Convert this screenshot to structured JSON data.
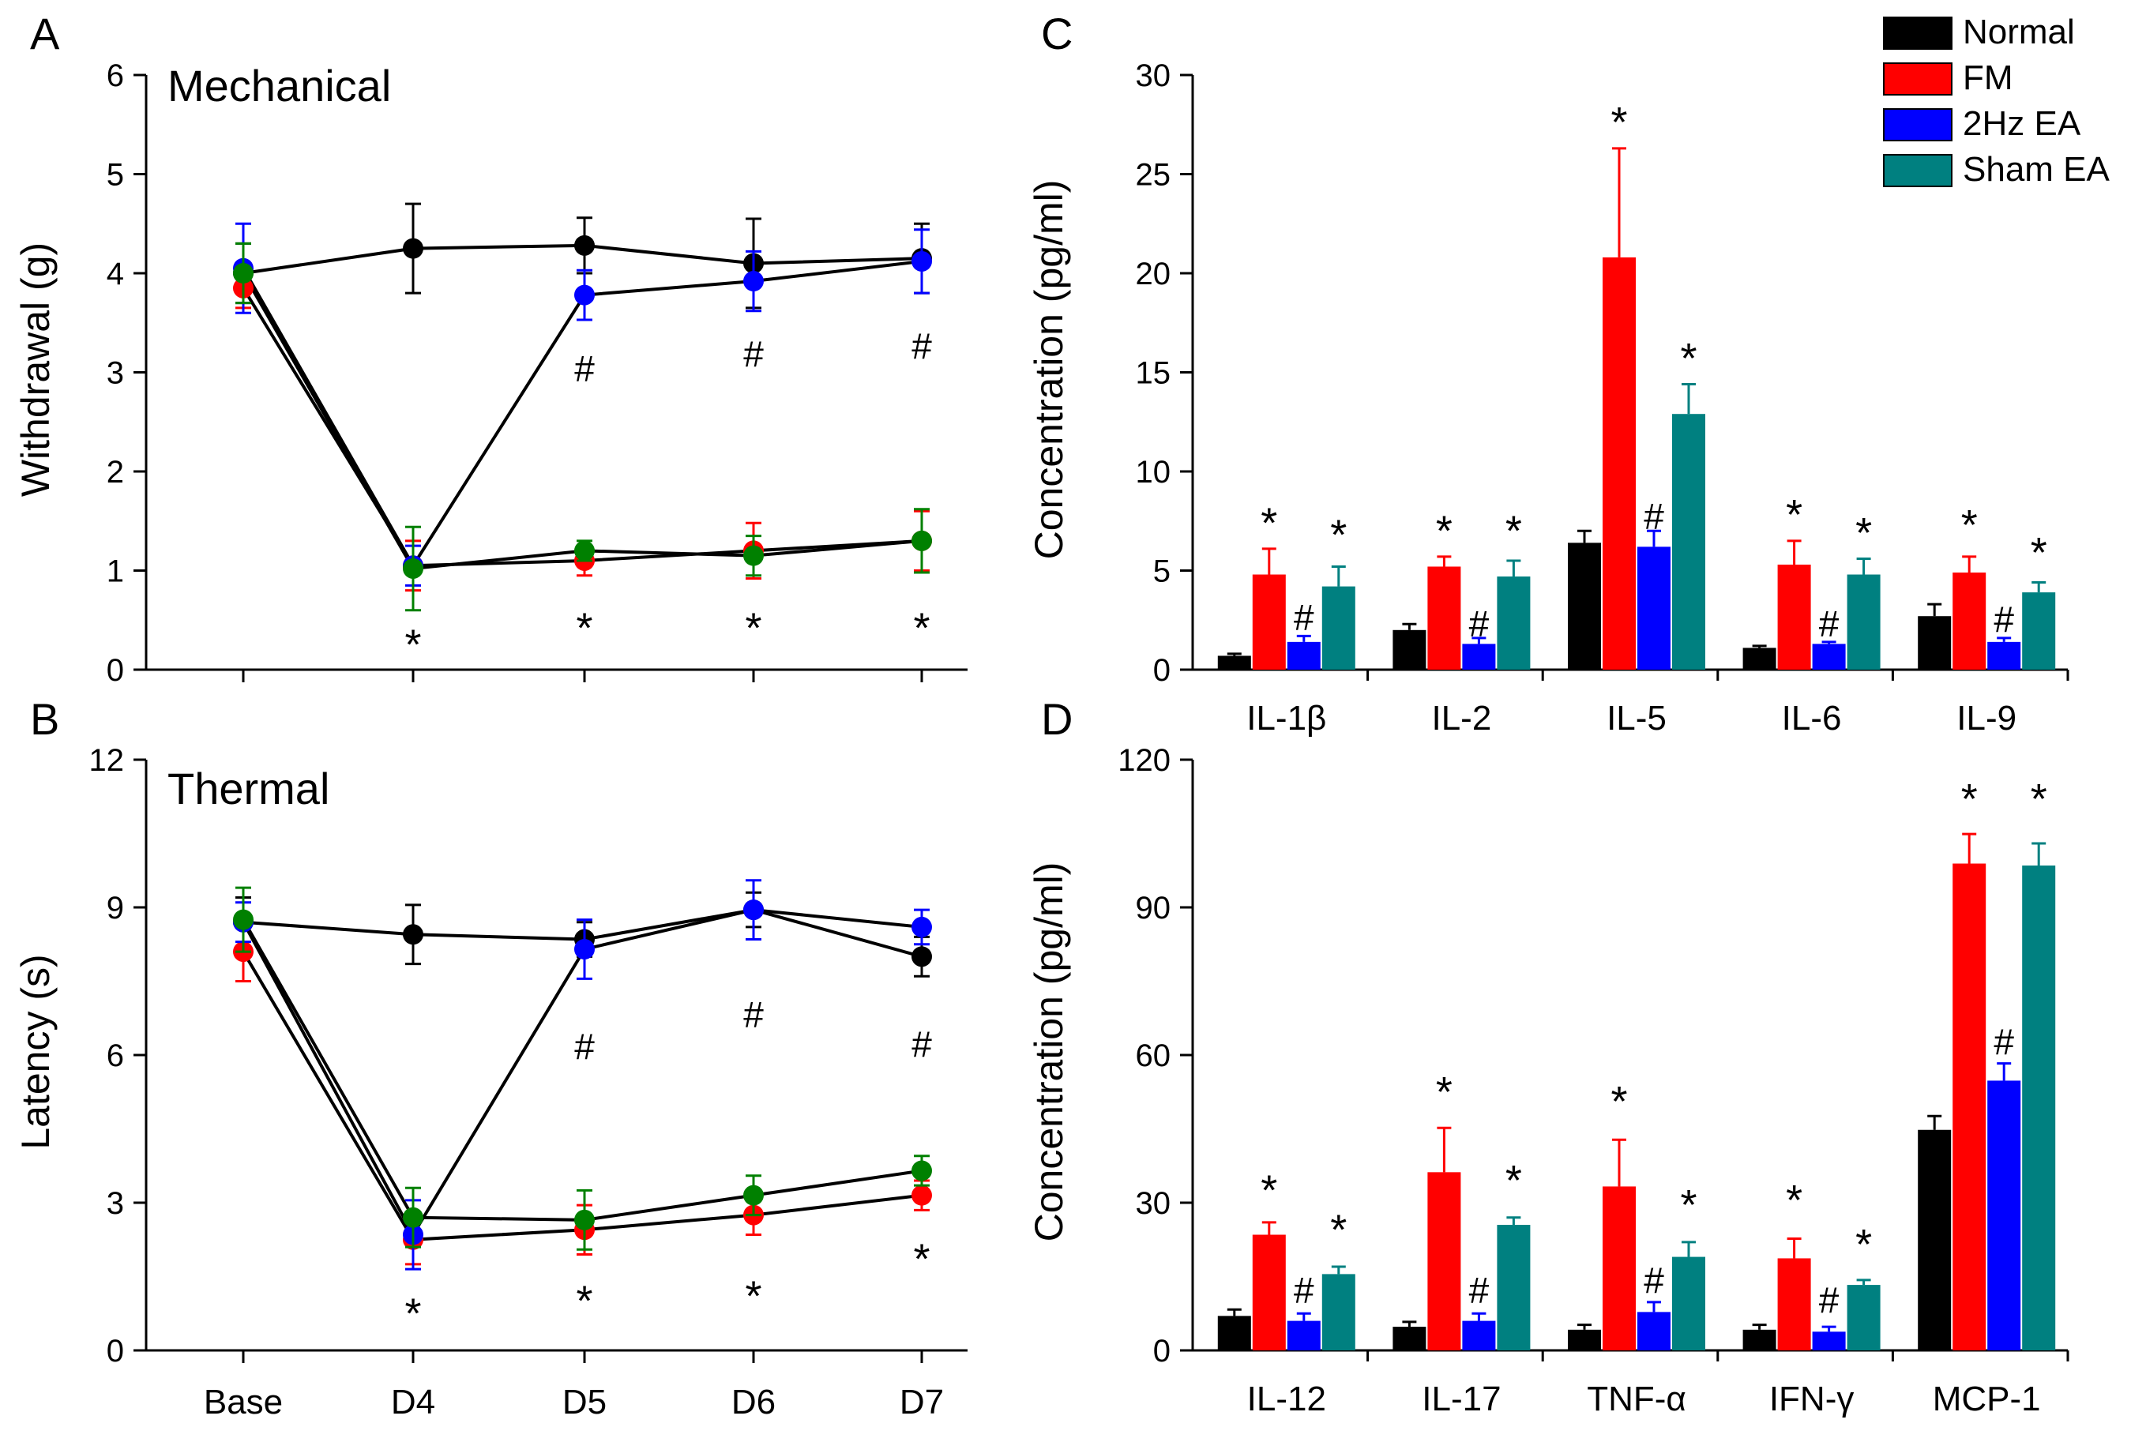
{
  "colors": {
    "Normal": "#000000",
    "FM": "#ff0000",
    "2Hz EA": "#0000ff",
    "Sham EA": "#008080",
    "line_marker_sham": "#008000"
  },
  "legend": {
    "entries": [
      "Normal",
      "FM",
      "2Hz EA",
      "Sham EA"
    ]
  },
  "chart_data": [
    {
      "id": "A",
      "type": "line",
      "panel_letter": "A",
      "title": "Mechanical",
      "xlabel": "",
      "ylabel": "Withdrawal (g)",
      "categories": [
        "Base",
        "D4",
        "D5",
        "D6",
        "D7"
      ],
      "show_x_tick_labels": false,
      "ylim": [
        0,
        6
      ],
      "yticks": [
        0,
        1,
        2,
        3,
        4,
        5,
        6
      ],
      "series": [
        {
          "name": "Normal",
          "values": [
            4.0,
            4.25,
            4.28,
            4.1,
            4.15
          ],
          "errors": [
            0.3,
            0.45,
            0.28,
            0.45,
            0.35
          ]
        },
        {
          "name": "FM",
          "values": [
            3.85,
            1.05,
            1.1,
            1.2,
            1.3
          ],
          "errors": [
            0.2,
            0.25,
            0.15,
            0.28,
            0.3
          ]
        },
        {
          "name": "2Hz EA",
          "values": [
            4.05,
            1.05,
            3.78,
            3.92,
            4.12
          ],
          "errors": [
            0.45,
            0.2,
            0.25,
            0.3,
            0.32
          ]
        },
        {
          "name": "Sham EA",
          "values": [
            4.0,
            1.02,
            1.2,
            1.15,
            1.3
          ],
          "errors": [
            0.3,
            0.42,
            0.1,
            0.2,
            0.32
          ]
        }
      ],
      "annotations": [
        {
          "category": "D4",
          "text": "*",
          "y": 0.25
        },
        {
          "category": "D5",
          "text": "*",
          "y": 0.42
        },
        {
          "category": "D6",
          "text": "*",
          "y": 0.42
        },
        {
          "category": "D7",
          "text": "*",
          "y": 0.42
        },
        {
          "category": "D5",
          "text": "#",
          "y": 3.05
        },
        {
          "category": "D6",
          "text": "#",
          "y": 3.2
        },
        {
          "category": "D7",
          "text": "#",
          "y": 3.28
        }
      ]
    },
    {
      "id": "B",
      "type": "line",
      "panel_letter": "B",
      "title": "Thermal",
      "xlabel": "",
      "ylabel": "Latency (s)",
      "categories": [
        "Base",
        "D4",
        "D5",
        "D6",
        "D7"
      ],
      "show_x_tick_labels": true,
      "ylim": [
        0,
        12
      ],
      "yticks": [
        0,
        3,
        6,
        9,
        12
      ],
      "series": [
        {
          "name": "Normal",
          "values": [
            8.7,
            8.45,
            8.35,
            8.95,
            8.0
          ],
          "errors": [
            0.5,
            0.6,
            0.35,
            0.35,
            0.4
          ]
        },
        {
          "name": "FM",
          "values": [
            8.1,
            2.25,
            2.45,
            2.75,
            3.15
          ],
          "errors": [
            0.6,
            0.5,
            0.5,
            0.4,
            0.3
          ]
        },
        {
          "name": "2Hz EA",
          "values": [
            8.7,
            2.35,
            8.15,
            8.95,
            8.6
          ],
          "errors": [
            0.4,
            0.7,
            0.6,
            0.6,
            0.35
          ]
        },
        {
          "name": "Sham EA",
          "values": [
            8.75,
            2.7,
            2.65,
            3.15,
            3.65
          ],
          "errors": [
            0.65,
            0.6,
            0.6,
            0.4,
            0.3
          ]
        }
      ],
      "annotations": [
        {
          "category": "D4",
          "text": "*",
          "y": 0.75
        },
        {
          "category": "D5",
          "text": "*",
          "y": 1.0
        },
        {
          "category": "D6",
          "text": "*",
          "y": 1.1
        },
        {
          "category": "D7",
          "text": "*",
          "y": 1.85
        },
        {
          "category": "D5",
          "text": "#",
          "y": 6.2
        },
        {
          "category": "D6",
          "text": "#",
          "y": 6.85
        },
        {
          "category": "D7",
          "text": "#",
          "y": 6.25
        }
      ]
    },
    {
      "id": "C",
      "type": "bar",
      "panel_letter": "C",
      "title": "",
      "xlabel": "",
      "ylabel": "Concentration (pg/ml)",
      "categories": [
        "IL-1β",
        "IL-2",
        "IL-5",
        "IL-6",
        "IL-9"
      ],
      "ylim": [
        0,
        30
      ],
      "yticks": [
        0,
        5,
        10,
        15,
        20,
        25,
        30
      ],
      "series": [
        {
          "name": "Normal",
          "values": [
            0.7,
            2.0,
            6.4,
            1.1,
            2.7
          ],
          "errors": [
            0.1,
            0.3,
            0.6,
            0.1,
            0.6
          ]
        },
        {
          "name": "FM",
          "values": [
            4.8,
            5.2,
            20.8,
            5.3,
            4.9
          ],
          "errors": [
            1.3,
            0.5,
            5.5,
            1.2,
            0.8
          ]
        },
        {
          "name": "2Hz EA",
          "values": [
            1.4,
            1.3,
            6.2,
            1.3,
            1.4
          ],
          "errors": [
            0.3,
            0.3,
            0.8,
            0.1,
            0.2
          ]
        },
        {
          "name": "Sham EA",
          "values": [
            4.2,
            4.7,
            12.9,
            4.8,
            3.9
          ],
          "errors": [
            1.0,
            0.8,
            1.5,
            0.8,
            0.5
          ]
        }
      ],
      "annotations": [
        {
          "category": "IL-1β",
          "series": "FM",
          "text": "*",
          "y": 7.4
        },
        {
          "category": "IL-1β",
          "series": "2Hz EA",
          "text": "#",
          "y": 2.7
        },
        {
          "category": "IL-1β",
          "series": "Sham EA",
          "text": "*",
          "y": 6.8
        },
        {
          "category": "IL-2",
          "series": "FM",
          "text": "*",
          "y": 7.0
        },
        {
          "category": "IL-2",
          "series": "2Hz EA",
          "text": "#",
          "y": 2.4
        },
        {
          "category": "IL-2",
          "series": "Sham EA",
          "text": "*",
          "y": 7.0
        },
        {
          "category": "IL-5",
          "series": "FM",
          "text": "*",
          "y": 27.6
        },
        {
          "category": "IL-5",
          "series": "2Hz EA",
          "text": "#",
          "y": 7.8
        },
        {
          "category": "IL-5",
          "series": "Sham EA",
          "text": "*",
          "y": 15.7
        },
        {
          "category": "IL-6",
          "series": "FM",
          "text": "*",
          "y": 7.8
        },
        {
          "category": "IL-6",
          "series": "2Hz EA",
          "text": "#",
          "y": 2.4
        },
        {
          "category": "IL-6",
          "series": "Sham EA",
          "text": "*",
          "y": 6.9
        },
        {
          "category": "IL-9",
          "series": "FM",
          "text": "*",
          "y": 7.3
        },
        {
          "category": "IL-9",
          "series": "2Hz EA",
          "text": "#",
          "y": 2.6
        },
        {
          "category": "IL-9",
          "series": "Sham EA",
          "text": "*",
          "y": 5.9
        }
      ]
    },
    {
      "id": "D",
      "type": "bar",
      "panel_letter": "D",
      "title": "",
      "xlabel": "",
      "ylabel": "Concentration (pg/ml)",
      "categories": [
        "IL-12",
        "IL-17",
        "TNF-α",
        "IFN-γ",
        "MCP-1"
      ],
      "ylim": [
        0,
        120
      ],
      "yticks": [
        0,
        30,
        60,
        90,
        120
      ],
      "series": [
        {
          "name": "Normal",
          "values": [
            7.0,
            4.8,
            4.2,
            4.2,
            44.8
          ],
          "errors": [
            1.3,
            1.0,
            1.0,
            1.0,
            2.8
          ]
        },
        {
          "name": "FM",
          "values": [
            23.5,
            36.2,
            33.3,
            18.7,
            98.9
          ],
          "errors": [
            2.5,
            9.0,
            9.5,
            4.0,
            6.0
          ]
        },
        {
          "name": "2Hz EA",
          "values": [
            6.0,
            6.0,
            7.8,
            3.8,
            54.8
          ],
          "errors": [
            1.5,
            1.5,
            2.0,
            1.0,
            3.5
          ]
        },
        {
          "name": "Sham EA",
          "values": [
            15.5,
            25.5,
            19.0,
            13.3,
            98.5
          ],
          "errors": [
            1.5,
            1.5,
            3.0,
            1.0,
            4.5
          ]
        }
      ],
      "annotations": [
        {
          "category": "IL-12",
          "series": "FM",
          "text": "*",
          "y": 32.5
        },
        {
          "category": "IL-12",
          "series": "2Hz EA",
          "text": "#",
          "y": 12.5
        },
        {
          "category": "IL-12",
          "series": "Sham EA",
          "text": "*",
          "y": 24.5
        },
        {
          "category": "IL-17",
          "series": "FM",
          "text": "*",
          "y": 52.5
        },
        {
          "category": "IL-17",
          "series": "2Hz EA",
          "text": "#",
          "y": 12.5
        },
        {
          "category": "IL-17",
          "series": "Sham EA",
          "text": "*",
          "y": 34.5
        },
        {
          "category": "TNF-α",
          "series": "FM",
          "text": "*",
          "y": 50.5
        },
        {
          "category": "TNF-α",
          "series": "2Hz EA",
          "text": "#",
          "y": 14.5
        },
        {
          "category": "TNF-α",
          "series": "Sham EA",
          "text": "*",
          "y": 29.5
        },
        {
          "category": "IFN-γ",
          "series": "FM",
          "text": "*",
          "y": 30.5
        },
        {
          "category": "IFN-γ",
          "series": "2Hz EA",
          "text": "#",
          "y": 10.5
        },
        {
          "category": "IFN-γ",
          "series": "Sham EA",
          "text": "*",
          "y": 21.5
        },
        {
          "category": "MCP-1",
          "series": "FM",
          "text": "*",
          "y": 112
        },
        {
          "category": "MCP-1",
          "series": "2Hz EA",
          "text": "#",
          "y": 63
        },
        {
          "category": "MCP-1",
          "series": "Sham EA",
          "text": "*",
          "y": 112
        }
      ]
    }
  ]
}
